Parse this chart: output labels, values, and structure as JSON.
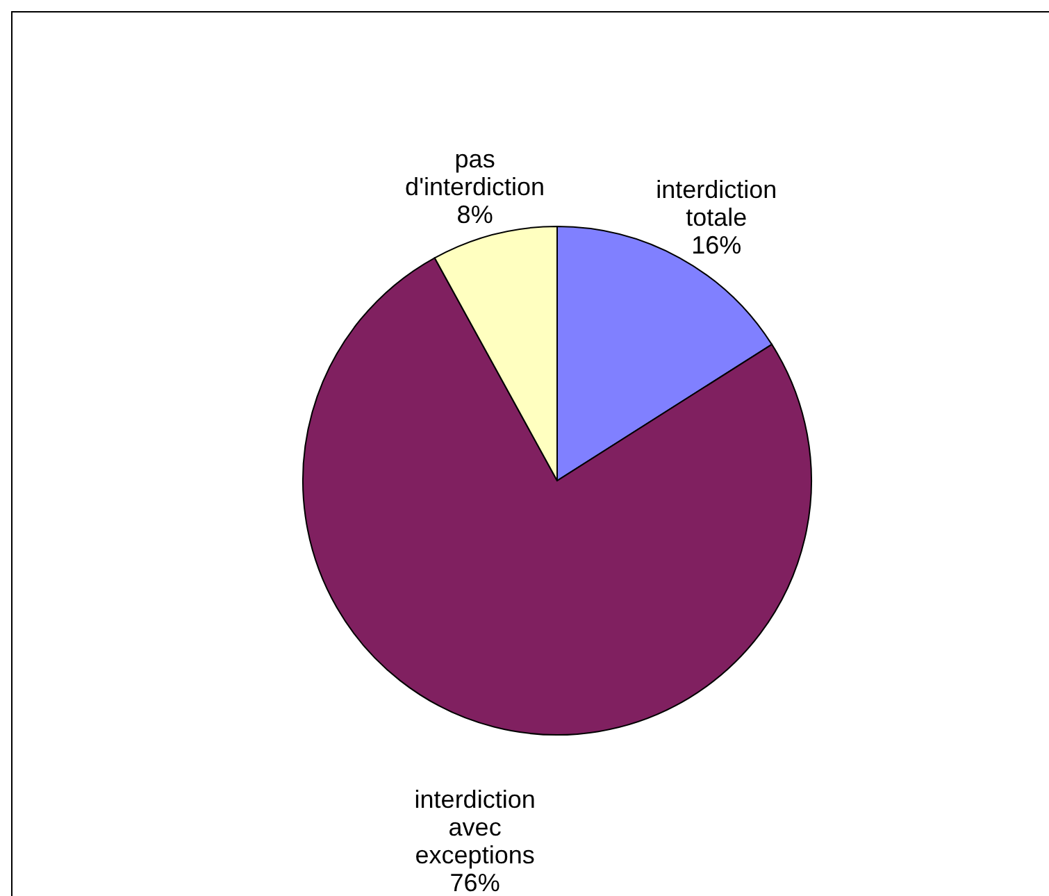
{
  "chart_data": {
    "type": "pie",
    "categories": [
      "interdiction totale",
      "interdiction avec exceptions",
      "pas d'interdiction"
    ],
    "values": [
      16,
      76,
      8
    ],
    "colors": [
      "#8080ff",
      "#802060",
      "#ffffc0"
    ],
    "value_labels": [
      "16%",
      "76%",
      "8%"
    ],
    "legend": false
  }
}
